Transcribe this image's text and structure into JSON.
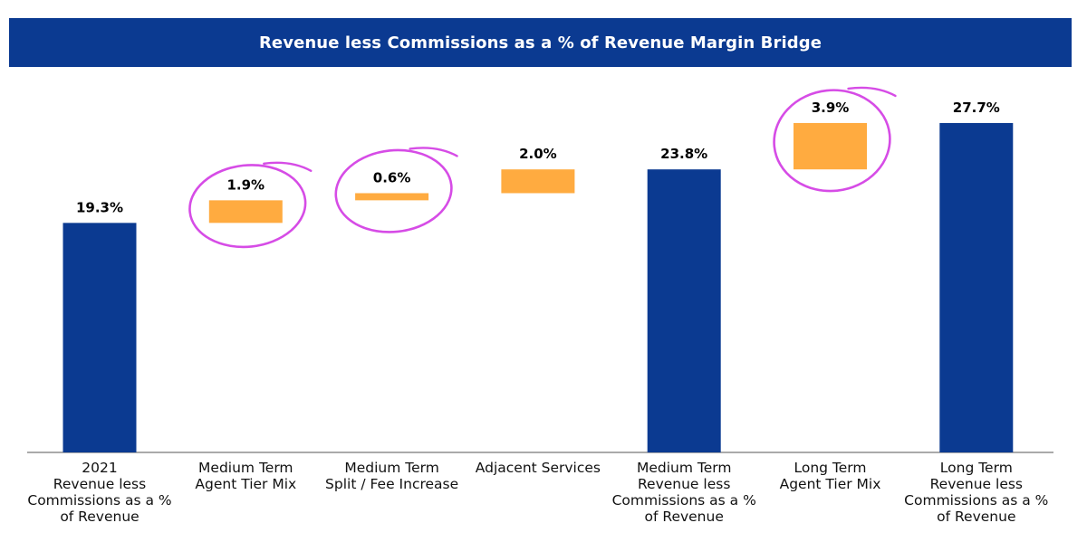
{
  "chart_data": {
    "type": "bar",
    "subtype": "waterfall",
    "title": "Revenue less Commissions as a % of Revenue Margin Bridge",
    "categories": [
      [
        "2021",
        "Revenue less",
        "Commissions as a %",
        "of Revenue"
      ],
      [
        "Medium Term",
        "Agent Tier Mix"
      ],
      [
        "Medium Term",
        "Split / Fee Increase"
      ],
      [
        "Adjacent Services"
      ],
      [
        "Medium Term",
        "Revenue less",
        "Commissions as a %",
        "of Revenue"
      ],
      [
        "Long Term",
        "Agent Tier Mix"
      ],
      [
        "Long Term",
        "Revenue less",
        "Commissions as a %",
        "of Revenue"
      ]
    ],
    "values": [
      19.3,
      1.9,
      0.6,
      2.0,
      23.8,
      3.9,
      27.7
    ],
    "kinds": [
      "total",
      "delta",
      "delta",
      "delta",
      "total",
      "delta",
      "total"
    ],
    "labels": [
      "19.3%",
      "1.9%",
      "0.6%",
      "2.0%",
      "23.8%",
      "3.9%",
      "27.7%"
    ],
    "highlighted": [
      1,
      2,
      5
    ],
    "ylim": [
      0,
      28
    ],
    "grid": false,
    "colors": {
      "total": "#0b3a91",
      "delta": "#ffab40",
      "highlight": "#d64ce6"
    }
  }
}
